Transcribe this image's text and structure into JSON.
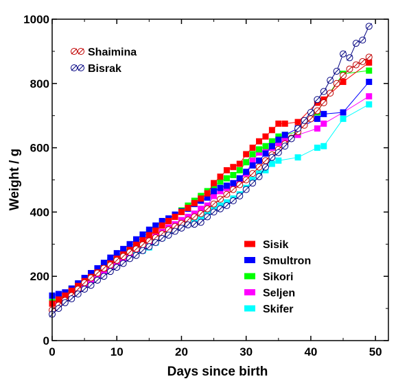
{
  "chart_data": {
    "type": "scatter",
    "xlabel": "Days since birth",
    "ylabel": "Weight / g",
    "xlim": [
      0,
      52
    ],
    "ylim": [
      0,
      1000
    ],
    "xticks": [
      0,
      10,
      20,
      30,
      40,
      50
    ],
    "yticks": [
      0,
      200,
      400,
      600,
      800,
      1000
    ],
    "grid": false,
    "legends": [
      {
        "placement": "top-left",
        "entries": [
          "Shaimina",
          "Bisrak"
        ]
      },
      {
        "placement": "bottom-right",
        "entries": [
          "Sisik",
          "Smultron",
          "Sikori",
          "Seljen",
          "Skifer"
        ]
      }
    ],
    "series": [
      {
        "name": "Shaimina",
        "marker": "circle-line",
        "color": "#c00000",
        "connected": true,
        "x": [
          0,
          1,
          2,
          3,
          4,
          5,
          6,
          7,
          8,
          9,
          10,
          11,
          12,
          13,
          14,
          15,
          16,
          17,
          18,
          19,
          20,
          21,
          22,
          23,
          24,
          25,
          26,
          27,
          28,
          29,
          30,
          31,
          32,
          33,
          34,
          35,
          36,
          37,
          38,
          39,
          40,
          41,
          42,
          43,
          44,
          45,
          46,
          47,
          48,
          49
        ],
        "y": [
          95,
          110,
          125,
          140,
          160,
          180,
          195,
          210,
          225,
          235,
          250,
          262,
          275,
          285,
          298,
          310,
          320,
          332,
          345,
          355,
          365,
          375,
          385,
          395,
          410,
          425,
          440,
          455,
          470,
          485,
          500,
          520,
          540,
          560,
          578,
          595,
          612,
          630,
          650,
          670,
          690,
          715,
          740,
          770,
          800,
          825,
          845,
          858,
          868,
          882
        ]
      },
      {
        "name": "Bisrak",
        "marker": "circle-line",
        "color": "#000080",
        "connected": true,
        "x": [
          0,
          1,
          2,
          3,
          4,
          5,
          6,
          7,
          8,
          9,
          10,
          11,
          12,
          13,
          14,
          15,
          16,
          17,
          18,
          19,
          20,
          21,
          22,
          23,
          24,
          25,
          26,
          27,
          28,
          29,
          30,
          31,
          32,
          33,
          34,
          35,
          36,
          37,
          38,
          39,
          40,
          41,
          42,
          43,
          44,
          45,
          46,
          47,
          48,
          49
        ],
        "y": [
          82,
          100,
          118,
          130,
          145,
          160,
          172,
          188,
          200,
          215,
          228,
          240,
          255,
          265,
          280,
          292,
          305,
          318,
          328,
          340,
          350,
          360,
          362,
          368,
          385,
          400,
          410,
          420,
          435,
          450,
          470,
          490,
          510,
          540,
          570,
          585,
          605,
          628,
          660,
          685,
          710,
          750,
          775,
          810,
          838,
          892,
          880,
          925,
          935,
          978
        ]
      },
      {
        "name": "Sisik",
        "marker": "square",
        "color": "#ff0000",
        "connected": false,
        "x": [
          0,
          1,
          2,
          3,
          4,
          5,
          6,
          7,
          8,
          9,
          10,
          11,
          12,
          13,
          14,
          15,
          16,
          17,
          18,
          19,
          20,
          21,
          22,
          23,
          24,
          25,
          26,
          27,
          28,
          29,
          30,
          31,
          32,
          33,
          34,
          35,
          36,
          38,
          41,
          42,
          45,
          49
        ],
        "y": [
          115,
          128,
          140,
          155,
          170,
          185,
          198,
          212,
          225,
          240,
          255,
          268,
          282,
          298,
          312,
          328,
          342,
          358,
          372,
          385,
          400,
          413,
          428,
          442,
          458,
          490,
          510,
          530,
          540,
          550,
          580,
          600,
          620,
          635,
          655,
          675,
          675,
          680,
          740,
          750,
          805,
          865
        ]
      },
      {
        "name": "Smultron",
        "marker": "square",
        "color": "#0000ff",
        "connected": false,
        "x": [
          0,
          1,
          2,
          3,
          4,
          5,
          6,
          7,
          8,
          9,
          10,
          11,
          12,
          13,
          14,
          15,
          16,
          17,
          18,
          19,
          20,
          21,
          22,
          23,
          24,
          25,
          26,
          27,
          28,
          29,
          30,
          31,
          32,
          33,
          34,
          35,
          36,
          38,
          41,
          42,
          45,
          49
        ],
        "y": [
          140,
          145,
          150,
          162,
          178,
          195,
          210,
          225,
          242,
          258,
          272,
          285,
          300,
          315,
          330,
          345,
          358,
          372,
          380,
          392,
          402,
          410,
          425,
          435,
          445,
          465,
          475,
          482,
          490,
          505,
          525,
          545,
          560,
          582,
          605,
          625,
          640,
          660,
          690,
          705,
          710,
          805
        ]
      },
      {
        "name": "Sikori",
        "marker": "square",
        "color": "#00ff00",
        "connected": false,
        "x": [
          0,
          1,
          2,
          3,
          4,
          5,
          6,
          7,
          8,
          9,
          10,
          11,
          12,
          13,
          14,
          15,
          16,
          17,
          18,
          19,
          20,
          21,
          22,
          23,
          24,
          25,
          26,
          27,
          28,
          29,
          30,
          31,
          32,
          33,
          34,
          35,
          36,
          38,
          41,
          42,
          45,
          49
        ],
        "y": [
          120,
          128,
          145,
          160,
          175,
          192,
          205,
          222,
          238,
          250,
          262,
          275,
          292,
          308,
          322,
          338,
          355,
          368,
          378,
          390,
          405,
          420,
          435,
          450,
          465,
          480,
          495,
          505,
          515,
          530,
          555,
          580,
          595,
          605,
          620,
          635,
          640,
          650,
          710,
          745,
          830,
          840
        ]
      },
      {
        "name": "Seljen",
        "marker": "square",
        "color": "#ff00ff",
        "connected": false,
        "x": [
          0,
          1,
          2,
          3,
          4,
          5,
          6,
          7,
          8,
          9,
          10,
          11,
          12,
          13,
          14,
          15,
          16,
          17,
          18,
          19,
          20,
          21,
          22,
          23,
          24,
          25,
          26,
          27,
          28,
          29,
          30,
          31,
          32,
          33,
          34,
          35,
          36,
          38,
          41,
          42,
          45,
          49
        ],
        "y": [
          115,
          118,
          130,
          140,
          158,
          172,
          185,
          198,
          212,
          228,
          242,
          255,
          270,
          285,
          298,
          310,
          325,
          338,
          352,
          362,
          375,
          385,
          395,
          410,
          420,
          450,
          465,
          475,
          480,
          500,
          520,
          560,
          585,
          595,
          600,
          615,
          625,
          640,
          660,
          675,
          710,
          760
        ]
      },
      {
        "name": "Skifer",
        "marker": "square",
        "color": "#00ffff",
        "connected": false,
        "x": [
          0,
          1,
          2,
          3,
          4,
          5,
          6,
          7,
          8,
          9,
          10,
          11,
          12,
          13,
          14,
          15,
          16,
          17,
          18,
          19,
          20,
          21,
          22,
          23,
          24,
          25,
          26,
          27,
          28,
          29,
          30,
          31,
          32,
          33,
          34,
          35,
          38,
          41,
          42,
          45,
          49
        ],
        "y": [
          140,
          132,
          138,
          148,
          160,
          175,
          190,
          205,
          215,
          228,
          240,
          250,
          262,
          272,
          280,
          290,
          305,
          320,
          335,
          350,
          362,
          372,
          375,
          385,
          398,
          410,
          420,
          430,
          442,
          455,
          475,
          500,
          520,
          530,
          550,
          560,
          570,
          600,
          605,
          690,
          735
        ]
      }
    ]
  }
}
